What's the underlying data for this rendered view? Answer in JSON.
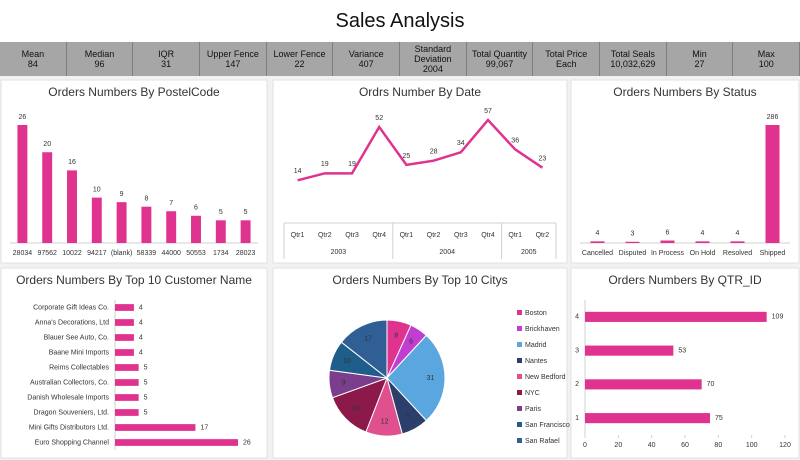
{
  "title": "Sales Analysis",
  "stats": [
    {
      "label": "Mean",
      "value": "84"
    },
    {
      "label": "Median",
      "value": "96"
    },
    {
      "label": "IQR",
      "value": "31"
    },
    {
      "label": "Upper Fence",
      "value": "147"
    },
    {
      "label": "Lower Fence",
      "value": "22"
    },
    {
      "label": "Variance",
      "value": "407"
    },
    {
      "label": "Standard Deviation",
      "value": "2004"
    },
    {
      "label": "Total Quantity",
      "value": "99,067"
    },
    {
      "label": "Total Price",
      "value": "Each"
    },
    {
      "label": "Total Seals",
      "value": "10,032,629"
    },
    {
      "label": "Min",
      "value": "27"
    },
    {
      "label": "Max",
      "value": "100"
    }
  ],
  "chart_data": [
    {
      "type": "bar",
      "title": "Orders Numbers By PostelCode",
      "color": "#e0338f",
      "categories": [
        "28034",
        "97562",
        "10022",
        "94217",
        "(blank)",
        "58339",
        "44000",
        "50553",
        "1734",
        "28023"
      ],
      "values": [
        26,
        20,
        16,
        10,
        9,
        8,
        7,
        6,
        5,
        5
      ]
    },
    {
      "type": "line",
      "title": "Ordrs Number By Date",
      "color": "#e0338f",
      "groups": [
        {
          "name": "2003",
          "categories": [
            "Qtr1",
            "Qtr2",
            "Qtr3",
            "Qtr4"
          ]
        },
        {
          "name": "2004",
          "categories": [
            "Qtr1",
            "Qtr2",
            "Qtr3",
            "Qtr4"
          ]
        },
        {
          "name": "2005",
          "categories": [
            "Qtr1",
            "Qtr2"
          ]
        }
      ],
      "values": [
        14,
        19,
        19,
        52,
        25,
        28,
        34,
        57,
        36,
        23
      ]
    },
    {
      "type": "bar",
      "title": "Orders Numbers By Status",
      "color": "#e0338f",
      "categories": [
        "Cancelled",
        "Disputed",
        "In Process",
        "On Hold",
        "Resolved",
        "Shipped"
      ],
      "values": [
        4,
        3,
        6,
        4,
        4,
        286
      ]
    },
    {
      "type": "barh",
      "title": "Orders Numbers By Top 10 Customer Name",
      "color": "#e0338f",
      "categories": [
        "Corporate Gift Ideas Co.",
        "Anna's Decorations, Ltd",
        "Blauer See Auto, Co.",
        "Baane Mini Imports",
        "Reims Collectables",
        "Australian Collectors, Co.",
        "Danish Wholesale Imports",
        "Dragon Souveniers, Ltd.",
        "Mini Gifts Distributors Ltd.",
        "Euro Shopping Channel"
      ],
      "values": [
        4,
        4,
        4,
        4,
        5,
        5,
        5,
        5,
        17,
        26
      ]
    },
    {
      "type": "pie",
      "title": "Orders Numbers By Top 10 Citys",
      "categories": [
        "Boston",
        "Brickhaven",
        "Madrid",
        "Nantes",
        "New Bedford",
        "NYC",
        "Paris",
        "San Francisco",
        "San Rafael"
      ],
      "values": [
        8,
        6,
        31,
        9,
        12,
        16,
        9,
        10,
        17
      ],
      "colors": [
        "#e0338f",
        "#c03fd0",
        "#5aa7e0",
        "#2c3e6b",
        "#e0508f",
        "#8b1a4a",
        "#7a3e8c",
        "#1f5d8a",
        "#2f5f95"
      ]
    },
    {
      "type": "barh",
      "title": "Orders Numbers By QTR_ID",
      "color": "#e0338f",
      "categories": [
        "1",
        "2",
        "3",
        "4"
      ],
      "values": [
        75,
        70,
        53,
        109
      ],
      "xlim": [
        0,
        120
      ],
      "xticks": [
        0,
        20,
        40,
        60,
        80,
        100,
        120
      ]
    }
  ]
}
